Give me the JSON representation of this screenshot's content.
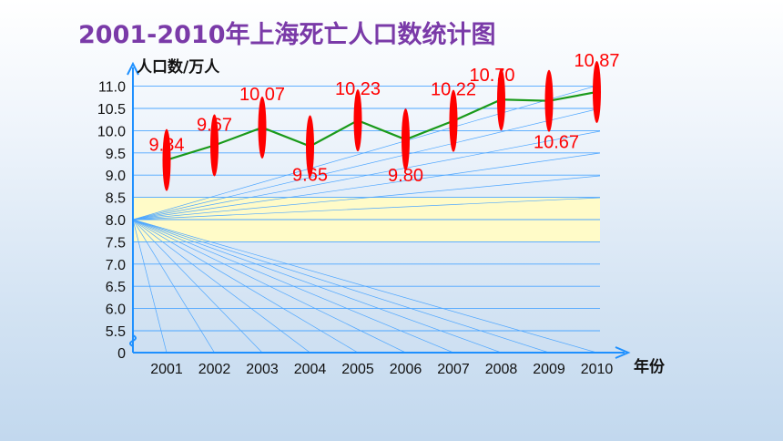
{
  "title": "2001-2010年上海死亡人口数统计图",
  "chart_data": {
    "type": "line",
    "title": "2001-2010年上海死亡人口数统计图",
    "ylabel": "人口数/万人",
    "xlabel": "年份",
    "categories": [
      "2001",
      "2002",
      "2003",
      "2004",
      "2005",
      "2006",
      "2007",
      "2008",
      "2009",
      "2010"
    ],
    "series": [
      {
        "values": [
          9.34,
          9.67,
          10.07,
          9.65,
          10.23,
          9.8,
          10.22,
          10.7,
          10.67,
          10.87
        ]
      }
    ],
    "data_labels": [
      "9.34",
      "9.67",
      "10.07",
      "9.65",
      "10.23",
      "9.80",
      "10.22",
      "10.70",
      "10.67",
      "10.87"
    ],
    "y_ticks": [
      "0",
      "5.5",
      "6.0",
      "6.5",
      "7.0",
      "7.5",
      "8.0",
      "8.5",
      "9.0",
      "9.5",
      "10.0",
      "10.5",
      "11.0"
    ],
    "ylim": [
      5.5,
      11.0
    ],
    "axis_break": true,
    "highlight_band": [
      7.5,
      8.5
    ],
    "colors": {
      "line": "#1a9a1a",
      "marker": "#ff0000",
      "label": "#ff0000",
      "axis": "#1e90ff",
      "grid": "#4da6ff",
      "band": "#fffbc8",
      "title": "#7a3aa8"
    }
  }
}
